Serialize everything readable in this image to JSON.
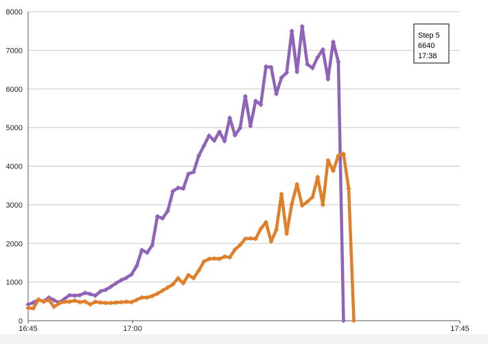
{
  "chart_data": {
    "type": "line",
    "title": "",
    "xlabel": "",
    "ylabel": "",
    "ylim": [
      0,
      8000
    ],
    "y_ticks": [
      "0",
      "1000",
      "2000",
      "3000",
      "4000",
      "5000",
      "6000",
      "7000",
      "8000"
    ],
    "x_ticks": [
      "16:45",
      "17:00",
      "17:45"
    ],
    "grid": "horizontal",
    "series": [
      {
        "color": "#8e63b8",
        "values": [
          [
            0,
            420
          ],
          [
            1,
            470
          ],
          [
            2,
            540
          ],
          [
            3,
            500
          ],
          [
            4,
            600
          ],
          [
            5,
            530
          ],
          [
            6,
            470
          ],
          [
            7,
            560
          ],
          [
            8,
            660
          ],
          [
            9,
            650
          ],
          [
            10,
            660
          ],
          [
            11,
            720
          ],
          [
            12,
            690
          ],
          [
            13,
            650
          ],
          [
            14,
            760
          ],
          [
            15,
            800
          ],
          [
            16,
            880
          ],
          [
            17,
            970
          ],
          [
            18,
            1050
          ],
          [
            19,
            1110
          ],
          [
            20,
            1200
          ],
          [
            21,
            1420
          ],
          [
            22,
            1830
          ],
          [
            23,
            1760
          ],
          [
            24,
            1950
          ],
          [
            25,
            2700
          ],
          [
            26,
            2650
          ],
          [
            27,
            2840
          ],
          [
            28,
            3350
          ],
          [
            29,
            3440
          ],
          [
            30,
            3420
          ],
          [
            31,
            3800
          ],
          [
            32,
            3850
          ],
          [
            33,
            4270
          ],
          [
            34,
            4530
          ],
          [
            35,
            4790
          ],
          [
            36,
            4660
          ],
          [
            37,
            4890
          ],
          [
            38,
            4650
          ],
          [
            39,
            5250
          ],
          [
            40,
            4800
          ],
          [
            41,
            4990
          ],
          [
            42,
            5810
          ],
          [
            43,
            5040
          ],
          [
            44,
            5690
          ],
          [
            45,
            5590
          ],
          [
            46,
            6580
          ],
          [
            47,
            6560
          ],
          [
            48,
            5870
          ],
          [
            49,
            6290
          ],
          [
            50,
            6420
          ],
          [
            51,
            7500
          ],
          [
            52,
            6440
          ],
          [
            53,
            7620
          ],
          [
            54,
            6640
          ],
          [
            55,
            6540
          ],
          [
            56,
            6820
          ],
          [
            57,
            7020
          ],
          [
            58,
            6250
          ],
          [
            59,
            7220
          ],
          [
            60,
            6700
          ],
          [
            61,
            0
          ]
        ]
      },
      {
        "color": "#e07f2a",
        "values": [
          [
            0,
            330
          ],
          [
            1,
            320
          ],
          [
            2,
            550
          ],
          [
            3,
            490
          ],
          [
            4,
            540
          ],
          [
            5,
            360
          ],
          [
            6,
            450
          ],
          [
            7,
            490
          ],
          [
            8,
            490
          ],
          [
            9,
            520
          ],
          [
            10,
            480
          ],
          [
            11,
            500
          ],
          [
            12,
            420
          ],
          [
            13,
            490
          ],
          [
            14,
            470
          ],
          [
            15,
            460
          ],
          [
            16,
            460
          ],
          [
            17,
            470
          ],
          [
            18,
            480
          ],
          [
            19,
            490
          ],
          [
            20,
            480
          ],
          [
            21,
            540
          ],
          [
            22,
            600
          ],
          [
            23,
            600
          ],
          [
            24,
            640
          ],
          [
            25,
            700
          ],
          [
            26,
            780
          ],
          [
            27,
            860
          ],
          [
            28,
            940
          ],
          [
            29,
            1100
          ],
          [
            30,
            970
          ],
          [
            31,
            1180
          ],
          [
            32,
            1100
          ],
          [
            33,
            1300
          ],
          [
            34,
            1530
          ],
          [
            35,
            1600
          ],
          [
            36,
            1610
          ],
          [
            37,
            1600
          ],
          [
            38,
            1660
          ],
          [
            39,
            1640
          ],
          [
            40,
            1840
          ],
          [
            41,
            1960
          ],
          [
            42,
            2120
          ],
          [
            43,
            2130
          ],
          [
            44,
            2120
          ],
          [
            45,
            2380
          ],
          [
            46,
            2550
          ],
          [
            47,
            2050
          ],
          [
            48,
            2350
          ],
          [
            49,
            3280
          ],
          [
            50,
            2250
          ],
          [
            51,
            3020
          ],
          [
            52,
            3530
          ],
          [
            53,
            2980
          ],
          [
            54,
            3080
          ],
          [
            55,
            3200
          ],
          [
            56,
            3720
          ],
          [
            57,
            3000
          ],
          [
            58,
            4150
          ],
          [
            59,
            3880
          ],
          [
            60,
            4270
          ],
          [
            61,
            4320
          ],
          [
            62,
            3420
          ],
          [
            63,
            0
          ]
        ]
      }
    ],
    "x_tick_positions": [
      0,
      20.2,
      83.5
    ],
    "x_range": [
      0,
      83.5
    ]
  },
  "tooltip": {
    "line1": "Step 5",
    "line2": "6640",
    "line3": "17:38"
  }
}
